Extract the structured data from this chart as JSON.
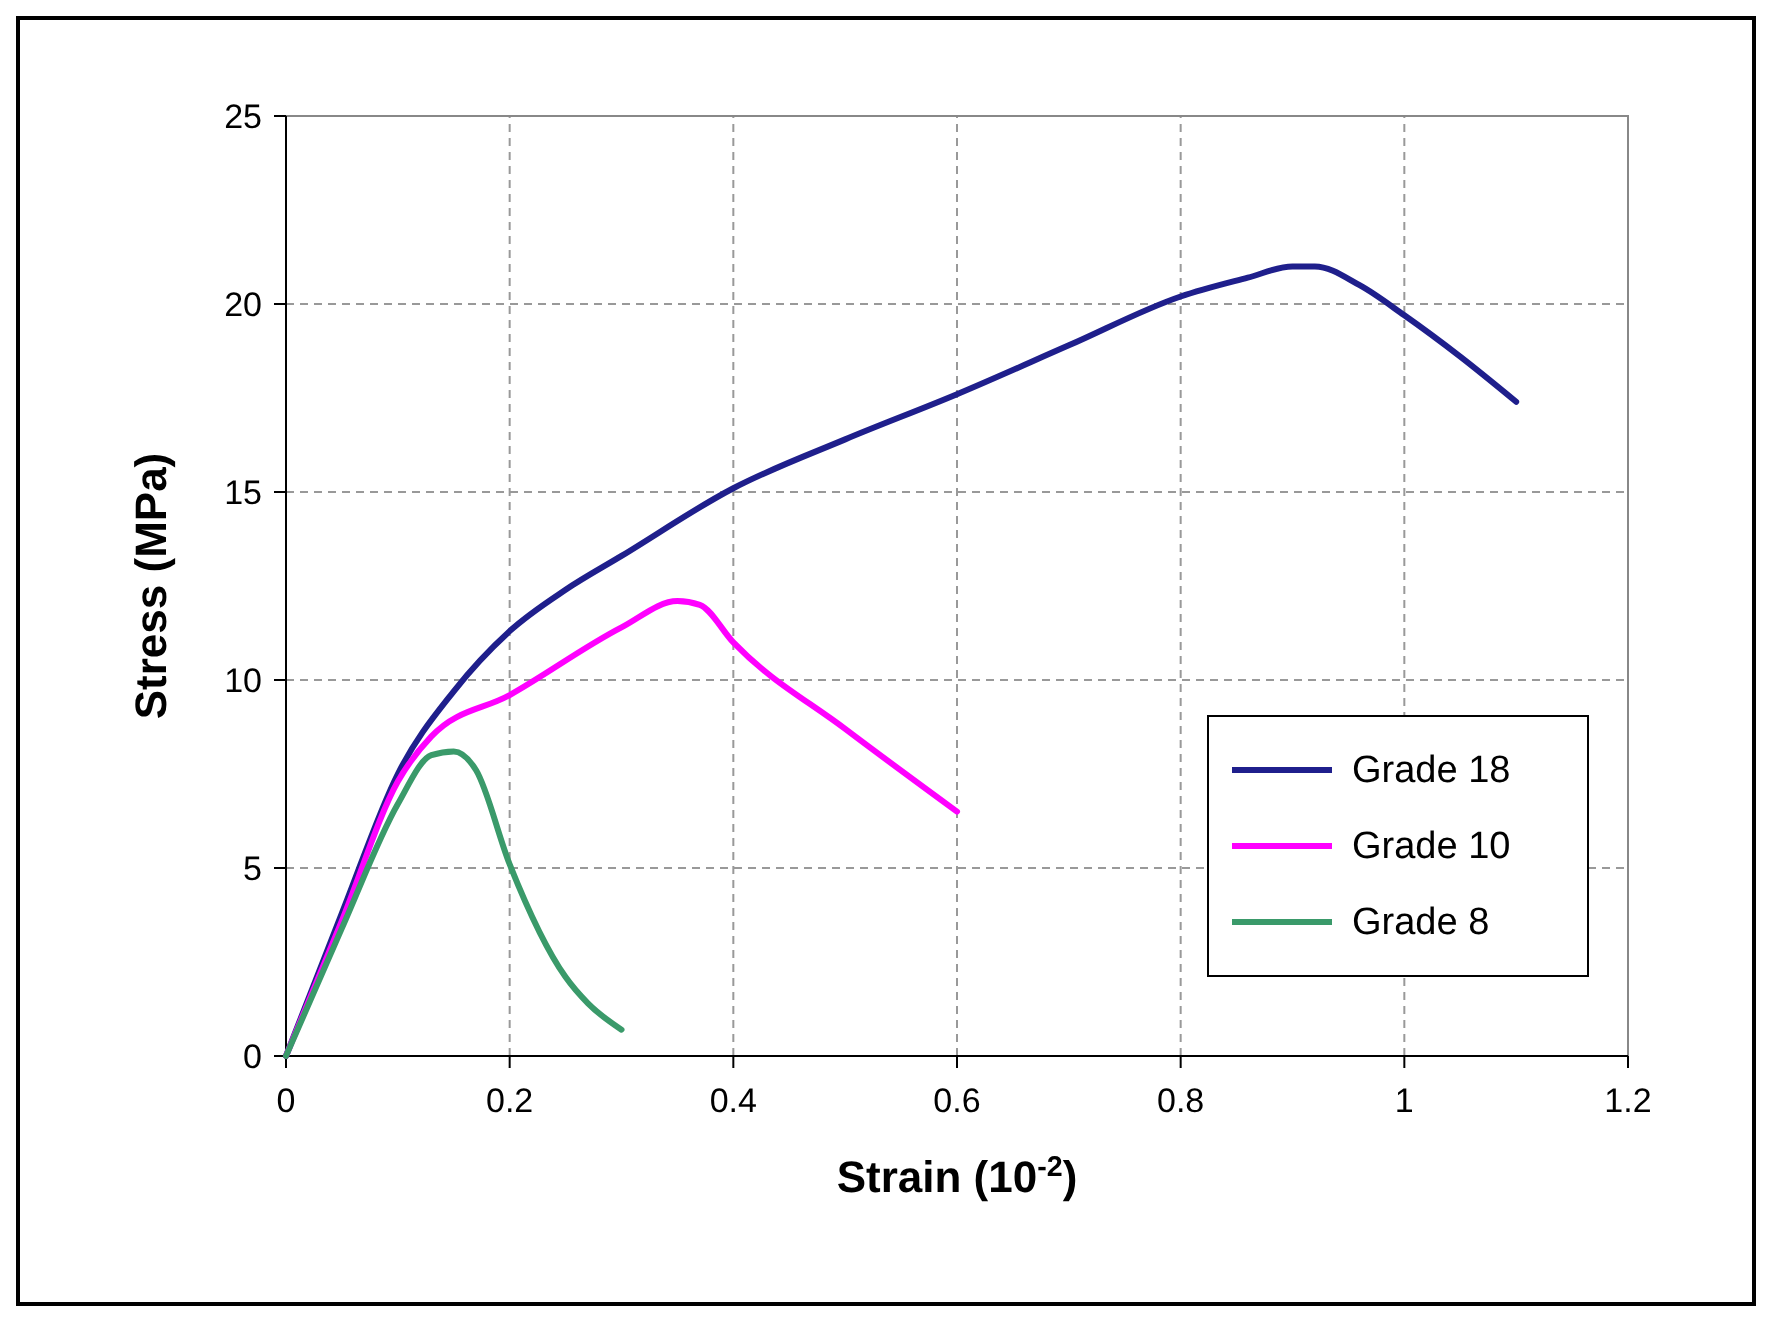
{
  "chart_data": {
    "type": "line",
    "xlabel": "Strain (10$^{-2}$)",
    "ylabel": "Stress (MPa)",
    "xlim": [
      0,
      1.2
    ],
    "ylim": [
      0,
      25
    ],
    "xticks": [
      0,
      0.2,
      0.4,
      0.6,
      0.8,
      1,
      1.2
    ],
    "yticks": [
      0,
      5,
      10,
      15,
      20,
      25
    ],
    "grid": true,
    "legend": "bottom right",
    "marker": "none",
    "line_style": "solid",
    "series": [
      {
        "name": "Grade 18",
        "color": "#1f1f8c",
        "x": [
          0,
          0.05,
          0.1,
          0.15,
          0.2,
          0.25,
          0.3,
          0.4,
          0.5,
          0.6,
          0.7,
          0.8,
          0.86,
          0.9,
          0.92,
          0.96,
          1,
          1.05,
          1.1
        ],
        "values": [
          0,
          3.8,
          7.5,
          9.7,
          11.3,
          12.4,
          13.3,
          15.1,
          16.4,
          17.6,
          18.9,
          20.2,
          20.7,
          21,
          21,
          20.5,
          19.7,
          18.6,
          17.4
        ]
      },
      {
        "name": "Grade 10",
        "color": "#ff00ff",
        "x": [
          0,
          0.05,
          0.1,
          0.13,
          0.2,
          0.3,
          0.35,
          0.37,
          0.4,
          0.5,
          0.6
        ],
        "values": [
          0,
          3.6,
          7.3,
          8.5,
          9.6,
          11.4,
          12.1,
          12,
          11,
          8.7,
          6.5
        ]
      },
      {
        "name": "Grade 8",
        "color": "#3a9a6a",
        "x": [
          0,
          0.05,
          0.1,
          0.13,
          0.15,
          0.17,
          0.2,
          0.25,
          0.27,
          0.3
        ],
        "values": [
          0,
          3.4,
          6.7,
          8,
          8.1,
          7.6,
          5.1,
          2.1,
          1.4,
          0.7
        ]
      }
    ]
  }
}
